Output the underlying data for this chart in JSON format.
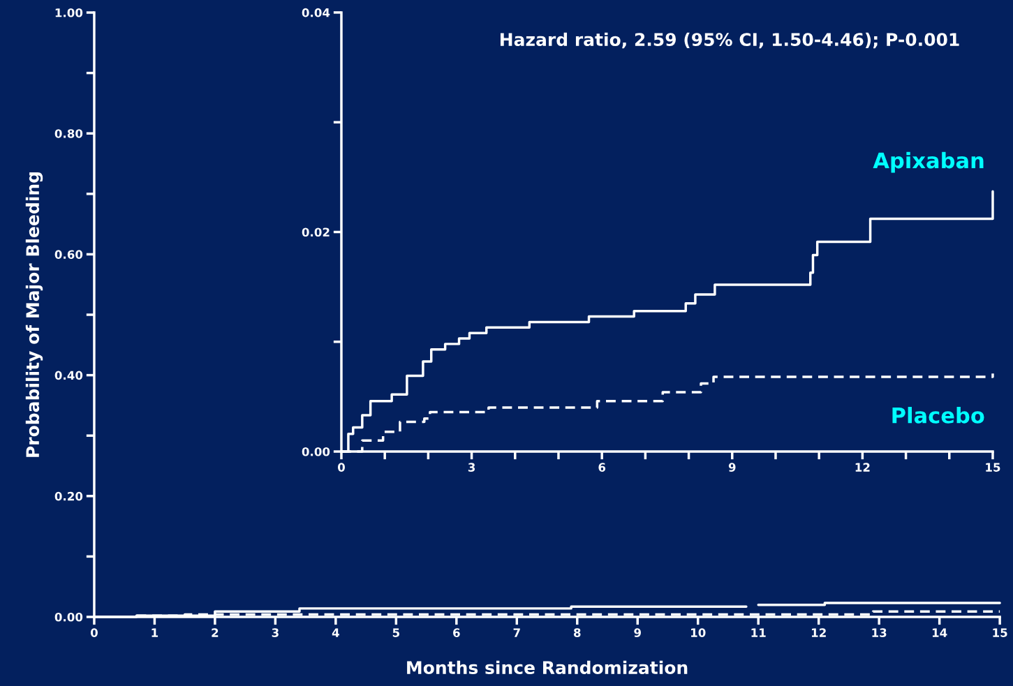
{
  "chart_data": [
    {
      "type": "step",
      "ylabel": "Probability of Major Bleeding",
      "xlabel": "Months since Randomization",
      "xlim": [
        0,
        15
      ],
      "xticks": [
        0,
        1,
        2,
        3,
        4,
        5,
        6,
        7,
        8,
        9,
        10,
        11,
        12,
        13,
        14,
        15
      ],
      "ylim": [
        0,
        1
      ],
      "yticks": [
        {
          "value": 0,
          "label": "0.00"
        },
        {
          "value": 0.1,
          "label": null
        },
        {
          "value": 0.2,
          "label": "0.20"
        },
        {
          "value": 0.3,
          "label": null
        },
        {
          "value": 0.4,
          "label": "0.40"
        },
        {
          "value": 0.5,
          "label": null
        },
        {
          "value": 0.6,
          "label": "0.60"
        },
        {
          "value": 0.7,
          "label": null
        },
        {
          "value": 0.8,
          "label": "0.80"
        },
        {
          "value": 0.9,
          "label": null
        },
        {
          "value": 1,
          "label": "1.00"
        }
      ],
      "grid": false,
      "series": [
        {
          "color": "#ffffff",
          "line_style": "solid",
          "x": [
            0,
            0.7,
            2,
            3.4,
            7.9,
            10.8,
            11,
            12.1,
            15
          ],
          "values": [
            0,
            0.002,
            0.009,
            0.014,
            0.017,
            null,
            0.02,
            0.023,
            0.023
          ]
        },
        {
          "color": "#ffffff",
          "line_style": "dashed",
          "x": [
            0.7,
            1.5,
            12.9,
            15
          ],
          "values": [
            0.002,
            0.004,
            0.009,
            0.009
          ]
        }
      ]
    },
    {
      "type": "step",
      "annotations": [
        "Hazard ratio, 2.59 (95% CI, 1.50-4.46); P-0.001"
      ],
      "xlim": [
        0,
        15
      ],
      "xticks": [
        0,
        {
          "value": 1,
          "label": null
        },
        {
          "value": 2,
          "label": null
        },
        3,
        {
          "value": 4,
          "label": null
        },
        {
          "value": 5,
          "label": null
        },
        6,
        {
          "value": 7,
          "label": null
        },
        {
          "value": 8,
          "label": null
        },
        9,
        {
          "value": 10,
          "label": null
        },
        {
          "value": 11,
          "label": null
        },
        12,
        {
          "value": 13,
          "label": null
        },
        {
          "value": 14,
          "label": null
        },
        15
      ],
      "ylim": [
        0,
        0.04
      ],
      "yticks": [
        {
          "value": 0,
          "label": "0.00"
        },
        {
          "value": 0.01,
          "label": null
        },
        {
          "value": 0.02,
          "label": "0.02"
        },
        {
          "value": 0.03,
          "label": null
        },
        {
          "value": 0.04,
          "label": "0.04"
        }
      ],
      "grid": false,
      "series": [
        {
          "name": "Apixaban",
          "color": "#ffffff",
          "line_style": "solid",
          "x": [
            0,
            0.16,
            0.27,
            0.48,
            0.67,
            1.16,
            1.51,
            1.88,
            2.07,
            2.39,
            2.71,
            2.95,
            3.34,
            4.33,
            5.7,
            6.74,
            7.93,
            8.15,
            8.6,
            10.8,
            10.86,
            10.96,
            12.18,
            15
          ],
          "values": [
            0,
            0.0016,
            0.0022,
            0.0033,
            0.0046,
            0.0052,
            0.0069,
            0.0082,
            0.0093,
            0.0098,
            0.0103,
            0.0108,
            0.0113,
            0.0118,
            0.0123,
            0.0128,
            0.0135,
            0.0143,
            0.0152,
            0.0163,
            0.0179,
            0.0191,
            0.0212,
            0.0237
          ]
        },
        {
          "name": "Placebo",
          "color": "#ffffff",
          "line_style": "dashed",
          "x": [
            0,
            0.48,
            0.96,
            1.35,
            1.91,
            2.04,
            3.39,
            5.89,
            7.4,
            8.28,
            8.57,
            15
          ],
          "values": [
            0,
            0.001,
            0.0018,
            0.0027,
            0.003,
            0.0036,
            0.004,
            0.0046,
            0.0054,
            0.0062,
            0.0068,
            0.0071
          ]
        }
      ]
    }
  ]
}
